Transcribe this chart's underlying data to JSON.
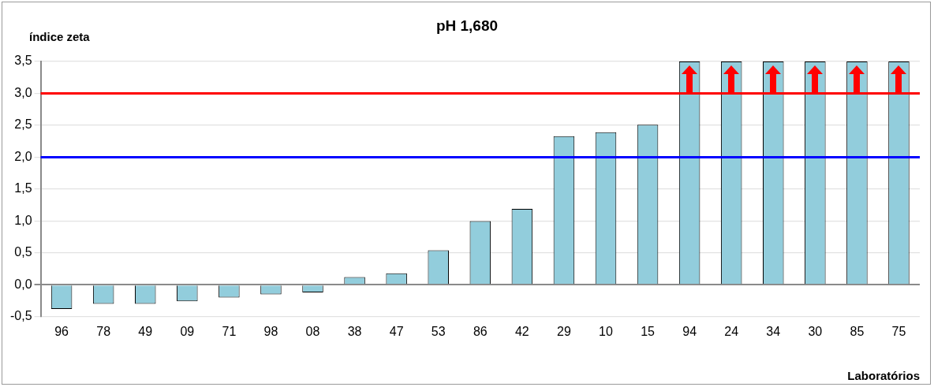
{
  "chart_data": {
    "type": "bar",
    "title": "pH 1,680",
    "ylabel": "índice zeta",
    "xlabel": "Laboratórios",
    "categories": [
      "96",
      "78",
      "49",
      "09",
      "71",
      "98",
      "08",
      "38",
      "47",
      "53",
      "86",
      "42",
      "29",
      "10",
      "15",
      "94",
      "24",
      "34",
      "30",
      "85",
      "75"
    ],
    "values": [
      -0.38,
      -0.3,
      -0.3,
      -0.26,
      -0.2,
      -0.15,
      -0.12,
      0.12,
      0.18,
      0.54,
      1.0,
      1.19,
      2.33,
      2.39,
      2.51,
      3.5,
      3.5,
      3.5,
      3.5,
      3.5,
      3.5
    ],
    "color": "#92cddc",
    "ylim": [
      -0.5,
      3.5
    ],
    "yticks": [
      {
        "value": -0.5,
        "label": "-0,5"
      },
      {
        "value": 0,
        "label": "0,0"
      },
      {
        "value": 0.5,
        "label": "0,5"
      },
      {
        "value": 1,
        "label": "1,0"
      },
      {
        "value": 1.5,
        "label": "1,5"
      },
      {
        "value": 2,
        "label": "2,0"
      },
      {
        "value": 2.5,
        "label": "2,5"
      },
      {
        "value": 3,
        "label": "3,0"
      },
      {
        "value": 3.5,
        "label": "3,5"
      }
    ],
    "ref_lines": [
      {
        "axis": "y",
        "value": 3,
        "label": null,
        "color": "#ff0000"
      },
      {
        "axis": "y",
        "value": 2,
        "label": null,
        "color": "#0000ff"
      }
    ],
    "grid": "y",
    "legend": false
  }
}
